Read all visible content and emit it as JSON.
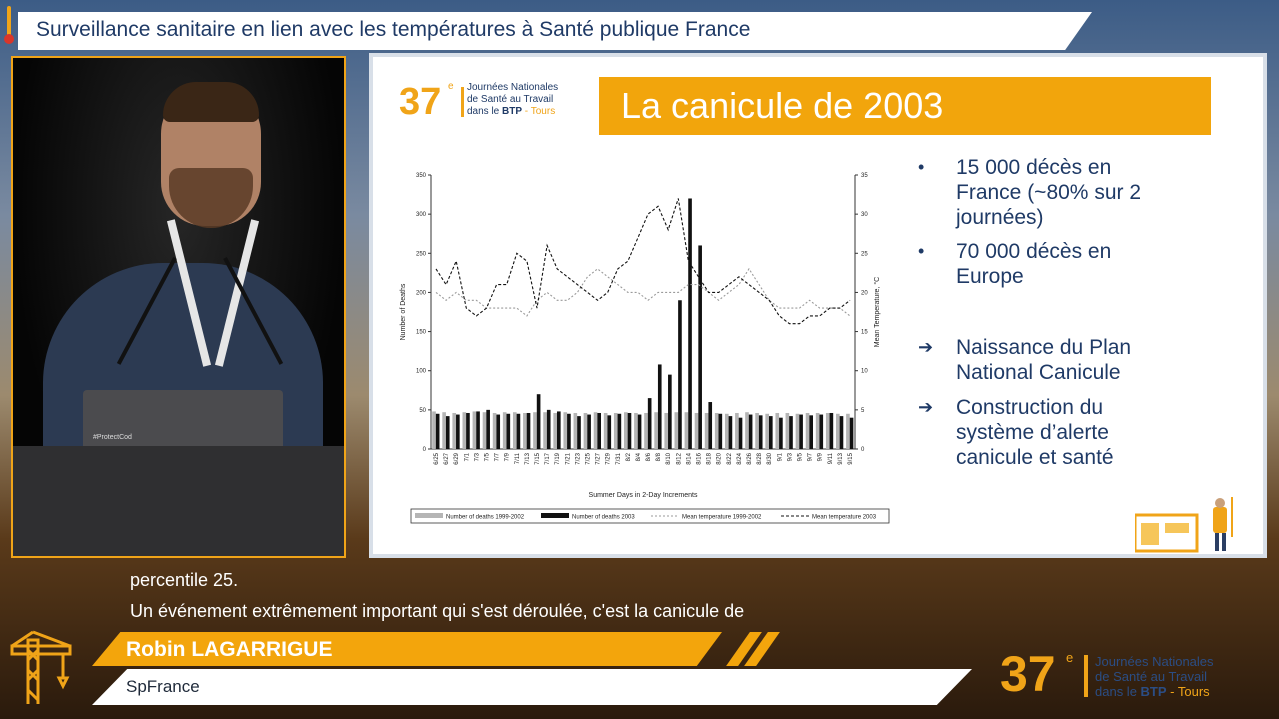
{
  "header": {
    "title": "Surveillance sanitaire en lien avec les températures à Santé publique France"
  },
  "video": {
    "laptop_label": "#ProtectCod"
  },
  "slide": {
    "logo": {
      "number": "37",
      "sup": "e",
      "line1": "Journées Nationales",
      "line2": "de Santé au Travail",
      "line3_a": "dans le ",
      "line3_b": "BTP",
      "line3_c": " - Tours"
    },
    "heading": "La canicule de 2003",
    "bullets": [
      {
        "mark": "•",
        "lines": [
          "15 000 décès en",
          "France (~80% sur 2",
          "journées)"
        ]
      },
      {
        "mark": "•",
        "lines": [
          "70 000 décès en",
          "Europe"
        ]
      },
      {
        "mark": "➔",
        "lines": [
          "Naissance du Plan",
          "National Canicule"
        ]
      },
      {
        "mark": "➔",
        "lines": [
          "Construction du",
          "système d’alerte",
          "canicule et santé"
        ]
      }
    ]
  },
  "chart_data": {
    "type": "bar",
    "xlabel": "Summer Days in 2-Day Increments",
    "ylabel": "Number of Deaths",
    "y2label": "Mean Temperature, °C",
    "ylim": [
      0,
      350
    ],
    "y2lim": [
      0,
      35
    ],
    "yticks": [
      0,
      50,
      100,
      150,
      200,
      250,
      300,
      350
    ],
    "y2ticks": [
      0,
      5,
      10,
      15,
      20,
      25,
      30,
      35
    ],
    "categories": [
      "6/25",
      "6/27",
      "6/29",
      "7/1",
      "7/3",
      "7/5",
      "7/7",
      "7/9",
      "7/11",
      "7/13",
      "7/15",
      "7/17",
      "7/19",
      "7/21",
      "7/23",
      "7/25",
      "7/27",
      "7/29",
      "7/31",
      "8/2",
      "8/4",
      "8/6",
      "8/8",
      "8/10",
      "8/12",
      "8/14",
      "8/16",
      "8/18",
      "8/20",
      "8/22",
      "8/24",
      "8/26",
      "8/28",
      "8/30",
      "9/1",
      "9/3",
      "9/5",
      "9/7",
      "9/9",
      "9/11",
      "9/13",
      "9/15"
    ],
    "legend": [
      "Number of deaths 1999-2002",
      "Number of deaths 2003",
      "Mean temperature 1999-2002",
      "Mean temperature 2003"
    ],
    "legend_position": "bottom",
    "series": [
      {
        "name": "Number of deaths 1999-2002",
        "values": [
          48,
          47,
          46,
          47,
          48,
          47,
          46,
          47,
          47,
          46,
          47,
          47,
          46,
          47,
          46,
          46,
          47,
          46,
          46,
          47,
          46,
          46,
          47,
          46,
          47,
          47,
          46,
          46,
          46,
          45,
          46,
          47,
          46,
          45,
          46,
          46,
          45,
          46,
          46,
          46,
          45,
          45
        ]
      },
      {
        "name": "Number of deaths 2003",
        "values": [
          45,
          42,
          44,
          46,
          48,
          50,
          44,
          45,
          45,
          46,
          70,
          50,
          48,
          45,
          42,
          44,
          46,
          43,
          45,
          46,
          44,
          65,
          108,
          95,
          190,
          320,
          260,
          60,
          45,
          42,
          40,
          44,
          43,
          42,
          40,
          42,
          44,
          43,
          44,
          46,
          42,
          40
        ]
      },
      {
        "name": "Mean temperature 1999-2002",
        "values": [
          20,
          19,
          20,
          19,
          19,
          18,
          18,
          18,
          18,
          17,
          19,
          20,
          19,
          19,
          20,
          22,
          23,
          22,
          21,
          20,
          20,
          19,
          20,
          20,
          20,
          21,
          21,
          20,
          19,
          20,
          21,
          23,
          21,
          19,
          18,
          18,
          18,
          19,
          18,
          18,
          18,
          17
        ]
      },
      {
        "name": "Mean temperature 2003",
        "values": [
          23,
          21,
          24,
          18,
          17,
          18,
          21,
          21,
          25,
          24,
          18,
          26,
          23,
          22,
          21,
          20,
          19,
          20,
          23,
          24,
          27,
          30,
          31,
          28,
          32,
          24,
          22,
          20,
          20,
          21,
          22,
          21,
          20,
          19,
          17,
          16,
          16,
          17,
          17,
          18,
          18,
          19
        ]
      }
    ]
  },
  "subtitles": {
    "line1": "percentile 25.",
    "line2": "Un événement extrêmement important qui s'est déroulée, c'est la canicule de"
  },
  "lower_third": {
    "name": "Robin LAGARRIGUE",
    "org": "SpFrance"
  },
  "corner_logo": {
    "number": "37",
    "sup": "e",
    "line1": "Journées Nationales",
    "line2": "de Santé au Travail",
    "line3_a": "dans le ",
    "line3_b": "BTP",
    "line3_c": " - Tours"
  },
  "colors": {
    "accent": "#f3a50c",
    "title_text": "#1f3a66",
    "slide_heading_bg": "#f2a50c"
  }
}
